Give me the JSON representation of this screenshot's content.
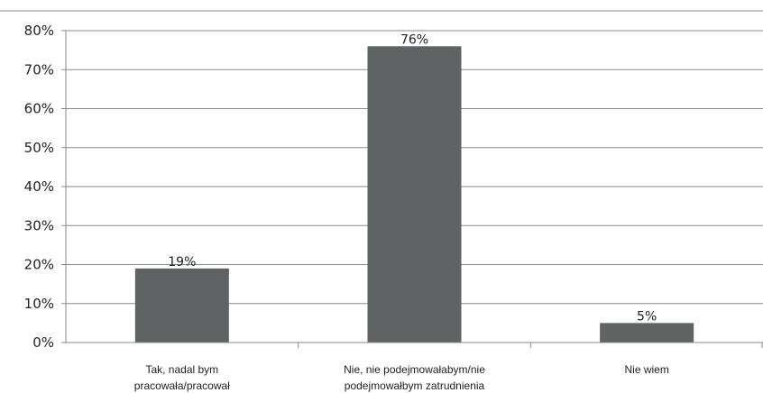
{
  "chart_data": {
    "type": "bar",
    "categories": [
      [
        "Tak, nadal bym",
        "pracowała/pracował"
      ],
      [
        "Nie, nie podejmowałabym/nie",
        "podejmowałbym zatrudnienia"
      ],
      [
        "Nie wiem"
      ]
    ],
    "values": [
      19,
      76,
      5
    ],
    "data_labels": [
      "19%",
      "76%",
      "5%"
    ],
    "ylim": [
      0,
      80
    ],
    "yticks": [
      "0%",
      "10%",
      "20%",
      "30%",
      "40%",
      "50%",
      "60%",
      "70%",
      "80%"
    ],
    "grid": true,
    "bar_color": "#5f6363",
    "legend": "none"
  }
}
